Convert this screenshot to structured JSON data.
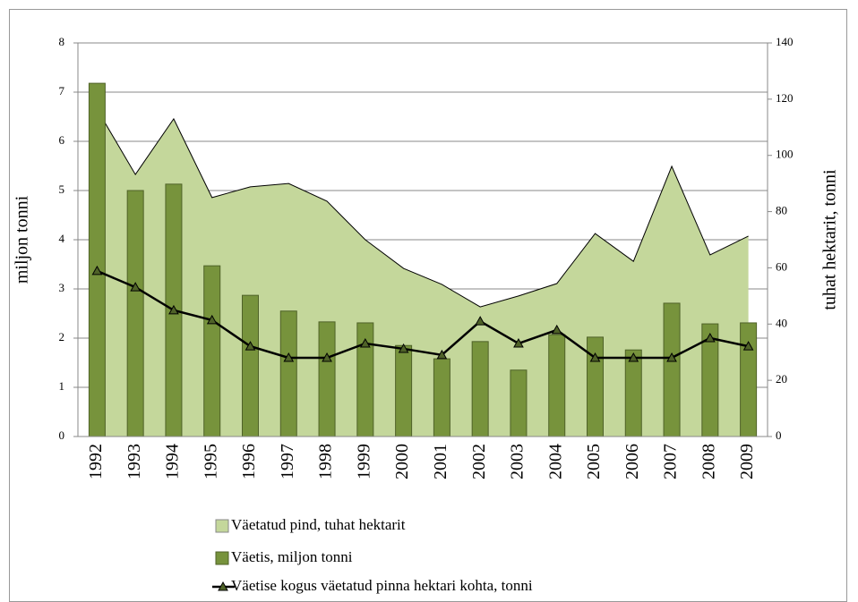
{
  "chart_data": {
    "type": "bar",
    "y_label": "miljon tonni",
    "y2_label": "tuhat hektarit, tonni",
    "categories": [
      "1992",
      "1993",
      "1994",
      "1995",
      "1996",
      "1997",
      "1998",
      "1999",
      "2000",
      "2001",
      "2002",
      "2003",
      "2004",
      "2005",
      "2006",
      "2007",
      "2008",
      "2009"
    ],
    "ylim": [
      0,
      8
    ],
    "yticks": [
      0,
      1,
      2,
      3,
      4,
      5,
      6,
      7,
      8
    ],
    "y2lim": [
      0,
      140
    ],
    "y2ticks": [
      0,
      20,
      40,
      60,
      80,
      100,
      120,
      140
    ],
    "grid": true,
    "series": [
      {
        "name": "Väetatud pind, tuhat hektarit",
        "type": "area",
        "axis": "y2",
        "color": "#c4d79b",
        "values": [
          116.4,
          93.2,
          113,
          85,
          88.8,
          90,
          83.7,
          70,
          59.8,
          54.1,
          46.1,
          50,
          54.4,
          72.2,
          62.3,
          96.1,
          64.6,
          71.3
        ]
      },
      {
        "name": "Väetis, miljon tonni",
        "type": "bar",
        "axis": "y",
        "color": "#77933c",
        "values": [
          7.18,
          5.0,
          5.13,
          3.47,
          2.87,
          2.55,
          2.33,
          2.31,
          1.85,
          1.58,
          1.93,
          1.35,
          2.07,
          2.02,
          1.76,
          2.71,
          2.29,
          2.31
        ]
      },
      {
        "name": "Väetise kogus väetatud pinna hektari kohta, tonni",
        "type": "line",
        "axis": "y2",
        "color": "#000000",
        "values": [
          58.9,
          53.1,
          44.9,
          41.4,
          32.1,
          28,
          28,
          33.1,
          31.2,
          29,
          41,
          33.1,
          37.9,
          28,
          28,
          28,
          35,
          32.1
        ]
      }
    ]
  }
}
